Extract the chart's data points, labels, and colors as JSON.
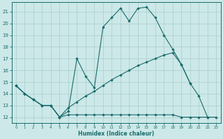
{
  "xlabel": "Humidex (Indice chaleur)",
  "bg_color": "#cce8e8",
  "line_color": "#1a6b6b",
  "grid_color": "#aacccc",
  "xlim": [
    -0.5,
    23.5
  ],
  "ylim": [
    11.5,
    21.8
  ],
  "yticks": [
    12,
    13,
    14,
    15,
    16,
    17,
    18,
    19,
    20,
    21
  ],
  "xticks": [
    0,
    1,
    2,
    3,
    4,
    5,
    6,
    7,
    8,
    9,
    10,
    11,
    12,
    13,
    14,
    15,
    16,
    17,
    18,
    19,
    20,
    21,
    22,
    23
  ],
  "line1_x": [
    0,
    1,
    2,
    3,
    4,
    5,
    6,
    7,
    8,
    9,
    10,
    11,
    12,
    13,
    14,
    15,
    16,
    17,
    18,
    19,
    20,
    21,
    22
  ],
  "line1_y": [
    14.7,
    14.0,
    13.5,
    13.0,
    13.0,
    12.0,
    12.5,
    17.0,
    15.5,
    14.5,
    19.7,
    20.5,
    21.3,
    20.2,
    21.3,
    21.4,
    20.5,
    19.0,
    17.8,
    16.5,
    14.9,
    13.8,
    12.0
  ],
  "line2_x": [
    0,
    1,
    2,
    3,
    4,
    5,
    6,
    7,
    8,
    9,
    10,
    11,
    12,
    13,
    14,
    15,
    16,
    17,
    18,
    19,
    20,
    21,
    22,
    23
  ],
  "line2_y": [
    14.7,
    14.0,
    13.5,
    13.0,
    13.0,
    12.0,
    12.2,
    12.2,
    12.2,
    12.2,
    12.2,
    12.2,
    12.2,
    12.2,
    12.2,
    12.2,
    12.2,
    12.2,
    12.2,
    12.0,
    12.0,
    12.0,
    12.0,
    12.0
  ],
  "line3_x": [
    0,
    1,
    2,
    3,
    4,
    5,
    6,
    7,
    8,
    9,
    10,
    11,
    12,
    13,
    14,
    15,
    16,
    17,
    18,
    19,
    20
  ],
  "line3_y": [
    14.7,
    14.0,
    13.5,
    13.0,
    13.0,
    12.0,
    12.8,
    13.3,
    13.8,
    14.2,
    14.7,
    15.2,
    15.6,
    16.0,
    16.4,
    16.7,
    17.0,
    17.3,
    17.5,
    16.5,
    14.9
  ]
}
